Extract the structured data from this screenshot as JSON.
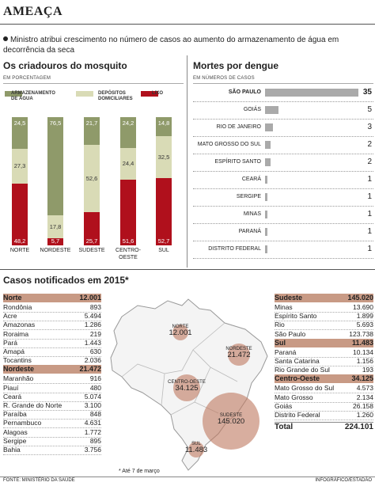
{
  "header": {
    "title": "AMEAÇA",
    "lead": "Ministro atribui crescimento no número de casos ao aumento do armazenamento de água em decorrência da seca"
  },
  "colors": {
    "agua": "#8f9a6a",
    "depositos": "#d9dbb6",
    "lixo": "#b0101c",
    "header_fill": "#c89a85",
    "bubble": "#c07a5f",
    "bar_gray": "#aaaaaa"
  },
  "left_panel": {
    "title": "Os criadouros do mosquito",
    "unit": "EM PORCENTAGEM",
    "legend": [
      "ARMAZENAMENTO DE ÁGUA",
      "DEPÓSITOS DOMICILIARES",
      "LIXO"
    ]
  },
  "right_panel": {
    "title": "Mortes por dengue",
    "unit": "EM NÚMEROS DE CASOS"
  },
  "cases": {
    "title": "Casos notificados em 2015*",
    "footnote": "* Até 7 de março",
    "total_label": "Total",
    "total_value": "224.101",
    "regions_left": [
      {
        "name": "Norte",
        "value": "12.001",
        "states": [
          [
            "Rondônia",
            "893"
          ],
          [
            "Acre",
            "5.494"
          ],
          [
            "Amazonas",
            "1.286"
          ],
          [
            "Roraima",
            "219"
          ],
          [
            "Pará",
            "1.443"
          ],
          [
            "Amapá",
            "630"
          ],
          [
            "Tocantins",
            "2.036"
          ]
        ]
      },
      {
        "name": "Nordeste",
        "value": "21.472",
        "states": [
          [
            "Maranhão",
            "916"
          ],
          [
            "Piauí",
            "480"
          ],
          [
            "Ceará",
            "5.074"
          ],
          [
            "R. Grande do Norte",
            "3.100"
          ],
          [
            "Paraíba",
            "848"
          ],
          [
            "Pernambuco",
            "4.631"
          ],
          [
            "Alagoas",
            "1.772"
          ],
          [
            "Sergipe",
            "895"
          ],
          [
            "Bahia",
            "3.756"
          ]
        ]
      }
    ],
    "regions_right": [
      {
        "name": "Sudeste",
        "value": "145.020",
        "states": [
          [
            "Minas",
            "13.690"
          ],
          [
            "Espírito Santo",
            "1.899"
          ],
          [
            "Rio",
            "5.693"
          ],
          [
            "São Paulo",
            "123.738"
          ]
        ]
      },
      {
        "name": "Sul",
        "value": "11.483",
        "states": [
          [
            "Paraná",
            "10.134"
          ],
          [
            "Santa Catarina",
            "1.156"
          ],
          [
            "Rio Grande do Sul",
            "193"
          ]
        ]
      },
      {
        "name": "Centro-Oeste",
        "value": "34.125",
        "states": [
          [
            "Mato Grosso do Sul",
            "4.573"
          ],
          [
            "Mato Grosso",
            "2.134"
          ],
          [
            "Goiás",
            "26.158"
          ],
          [
            "Distrito Federal",
            "1.260"
          ]
        ]
      }
    ],
    "map_bubbles": [
      {
        "label": "NORTE",
        "value": "12.001"
      },
      {
        "label": "NORDESTE",
        "value": "21.472"
      },
      {
        "label": "CENTRO-OESTE",
        "value": "34.125"
      },
      {
        "label": "SUDESTE",
        "value": "145.020"
      },
      {
        "label": "SUL",
        "value": "11.483"
      }
    ]
  },
  "footer": {
    "source": "FONTE: MINISTÉRIO DA SAÚDE",
    "credit": "INFOGRÁFICO/ESTADÃO"
  },
  "chart_data": [
    {
      "type": "bar",
      "title": "Os criadouros do mosquito",
      "ylabel": "EM PORCENTAGEM",
      "stacked": true,
      "categories": [
        "NORTE",
        "NORDESTE",
        "SUDESTE",
        "CENTRO-OESTE",
        "SUL"
      ],
      "series": [
        {
          "name": "ARMAZENAMENTO DE ÁGUA",
          "values": [
            24.5,
            76.5,
            21.7,
            24.2,
            14.8
          ]
        },
        {
          "name": "DEPÓSITOS DOMICILIARES",
          "values": [
            27.3,
            17.8,
            52.6,
            24.4,
            32.5
          ]
        },
        {
          "name": "LIXO",
          "values": [
            48.2,
            5.7,
            25.7,
            51.6,
            52.7
          ]
        }
      ],
      "ylim": [
        0,
        100
      ]
    },
    {
      "type": "bar",
      "orientation": "horizontal",
      "title": "Mortes por dengue",
      "xlabel": "EM NÚMEROS DE CASOS",
      "categories": [
        "SÃO PAULO",
        "GOIÁS",
        "RIO DE JANEIRO",
        "MATO GROSSO DO SUL",
        "ESPÍRITO SANTO",
        "CEARÁ",
        "SERGIPE",
        "MINAS",
        "PARANÁ",
        "DISTRITO FEDERAL"
      ],
      "values": [
        35,
        5,
        3,
        2,
        2,
        1,
        1,
        1,
        1,
        1
      ]
    }
  ]
}
